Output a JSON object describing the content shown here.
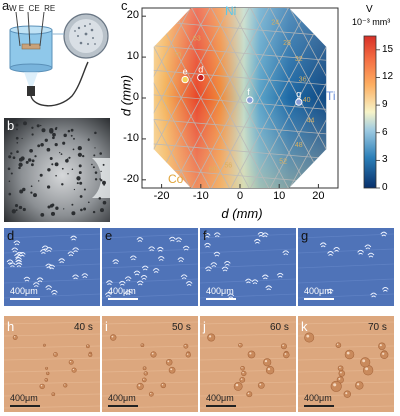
{
  "panels": {
    "a": "a",
    "b": "b",
    "c": "c",
    "d": "d",
    "e": "e",
    "f": "f",
    "g": "g",
    "h": "h",
    "i": "i",
    "j": "j",
    "k": "k"
  },
  "setup": {
    "electrodes": "W E  CE  RE"
  },
  "chart_data": {
    "type": "heatmap",
    "xlabel": "d (mm)",
    "ylabel": "d (mm)",
    "xlim": [
      -25,
      25
    ],
    "ylim": [
      -22,
      22
    ],
    "xticks": [
      "-20",
      "-10",
      "0",
      "10",
      "20"
    ],
    "yticks": [
      "20",
      "10",
      "0",
      "-10",
      "-20"
    ],
    "corner_labels": {
      "ni": "Ni",
      "co": "Co",
      "ti": "Ti"
    },
    "points": [
      {
        "label": "e",
        "x": -14,
        "y": 4.5
      },
      {
        "label": "d",
        "x": -10,
        "y": 5.0
      },
      {
        "label": "f",
        "x": 2.5,
        "y": -0.5
      },
      {
        "label": "g",
        "x": 15,
        "y": -1.0
      }
    ],
    "colorbar": {
      "title_line1": "V",
      "title_line2": "10⁻³ mm³",
      "ticks": [
        "15",
        "12",
        "9",
        "6",
        "3",
        "0"
      ],
      "range": [
        0,
        16.5
      ]
    },
    "composition_labels": [
      "24",
      "28",
      "32",
      "36",
      "40",
      "44",
      "48",
      "52",
      "56",
      "60",
      "63",
      "70"
    ]
  },
  "scales": {
    "d": "400μm",
    "e": "400μm",
    "f": "400μm",
    "g": "400μm",
    "h": "400μm",
    "i": "400μm",
    "j": "400μm",
    "k": "400μm"
  },
  "times": {
    "h": "40 s",
    "i": "50 s",
    "j": "60 s",
    "k": "70 s"
  }
}
